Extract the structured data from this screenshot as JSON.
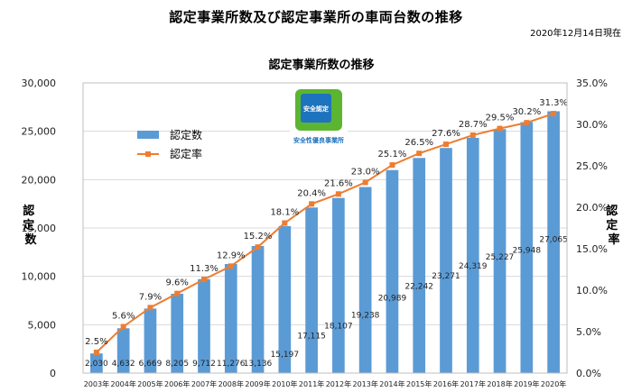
{
  "page": {
    "title": "認定事業所数及び認定事業所の車両台数の推移",
    "date_note": "2020年12月14日現在"
  },
  "badge": {
    "caption": "安全性優良事業所",
    "inner_text": "安全認定"
  },
  "colors": {
    "bar": "#5b9bd5",
    "line": "#ed7d31",
    "grid": "#d9d9d9",
    "badge_green": "#5cb531",
    "badge_blue": "#1e73be"
  },
  "chart_data": {
    "type": "bar",
    "title": "認定事業所数の推移",
    "categories": [
      "2003年",
      "2004年",
      "2005年",
      "2006年",
      "2007年",
      "2008年",
      "2009年",
      "2010年",
      "2011年",
      "2012年",
      "2013年",
      "2014年",
      "2015年",
      "2016年",
      "2017年",
      "2018年",
      "2019年",
      "2020年"
    ],
    "series": [
      {
        "name": "認定数",
        "kind": "bar",
        "axis": "left",
        "values": [
          2030,
          4632,
          6669,
          8205,
          9712,
          11276,
          13136,
          15197,
          17115,
          18107,
          19238,
          20989,
          22242,
          23271,
          24319,
          25227,
          25948,
          27065
        ],
        "labels": [
          "2,030",
          "4,632",
          "6,669",
          "8,205",
          "9,712",
          "11,276",
          "13,136",
          "15,197",
          "17,115",
          "18,107",
          "19,238",
          "20,989",
          "22,242",
          "23,271",
          "24,319",
          "25,227",
          "25,948",
          "27,065"
        ]
      },
      {
        "name": "認定率",
        "kind": "line",
        "axis": "right",
        "values": [
          2.5,
          5.6,
          7.9,
          9.6,
          11.3,
          12.9,
          15.2,
          18.1,
          20.4,
          21.6,
          23.0,
          25.1,
          26.5,
          27.6,
          28.7,
          29.5,
          30.2,
          31.3
        ],
        "labels": [
          "2.5%",
          "5.6%",
          "7.9%",
          "9.6%",
          "11.3%",
          "12.9%",
          "15.2%",
          "18.1%",
          "20.4%",
          "21.6%",
          "23.0%",
          "25.1%",
          "26.5%",
          "27.6%",
          "28.7%",
          "29.5%",
          "30.2%",
          "31.3%"
        ]
      }
    ],
    "ylabel": "認定数",
    "y2label": "認定率",
    "ylim": [
      0,
      30000
    ],
    "y2lim": [
      0,
      35
    ],
    "yticks": [
      "0",
      "5,000",
      "10,000",
      "15,000",
      "20,000",
      "25,000",
      "30,000"
    ],
    "y2ticks": [
      "0.0%",
      "5.0%",
      "10.0%",
      "15.0%",
      "20.0%",
      "25.0%",
      "30.0%",
      "35.0%"
    ],
    "grid": true,
    "legend": "top-left"
  }
}
